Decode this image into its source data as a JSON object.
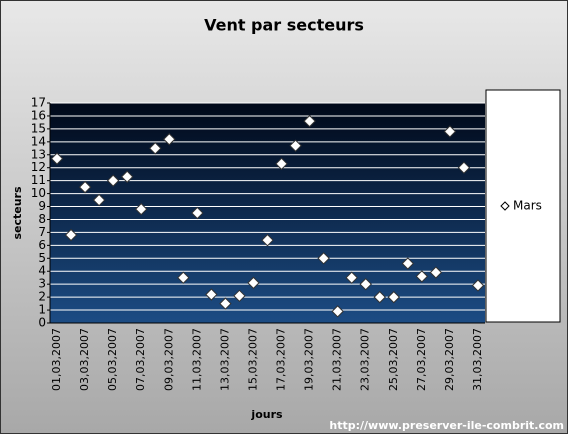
{
  "chart_data": {
    "type": "scatter",
    "title": "Vent par secteurs",
    "x_label": "jours",
    "y_label": "secteurs",
    "source": "http://www.preserver-ile-combrit.com",
    "categories": [
      "01,03,2007",
      null,
      "03,03,2007",
      null,
      "05,03,2007",
      null,
      "07,03,2007",
      null,
      "09,03,2007",
      null,
      "11,03,2007",
      null,
      "13,03,2007",
      null,
      "15,03,2007",
      null,
      "17,03,2007",
      null,
      "19,03,2007",
      null,
      "21,03,2007",
      null,
      "23,03,2007",
      null,
      "25,03,2007",
      null,
      "27,03,2007",
      null,
      "29,03,2007",
      null,
      "31,03,2007"
    ],
    "series": [
      {
        "name": "Mars",
        "color": "#ffffff",
        "values": [
          12.7,
          6.8,
          10.5,
          9.5,
          11,
          11.3,
          8.8,
          13.5,
          14.2,
          3.5,
          8.5,
          2.2,
          1.5,
          2.1,
          3.1,
          6.4,
          12.3,
          13.7,
          15.6,
          5,
          0.9,
          3.5,
          3,
          2,
          2,
          4.6,
          3.6,
          3.9,
          14.8,
          12,
          2.9
        ]
      }
    ],
    "ylim": [
      0,
      17
    ],
    "yticks": [
      0,
      1,
      2,
      3,
      4,
      5,
      6,
      7,
      8,
      9,
      10,
      11,
      12,
      13,
      14,
      15,
      16,
      17
    ],
    "grid": true,
    "legend": "right"
  }
}
